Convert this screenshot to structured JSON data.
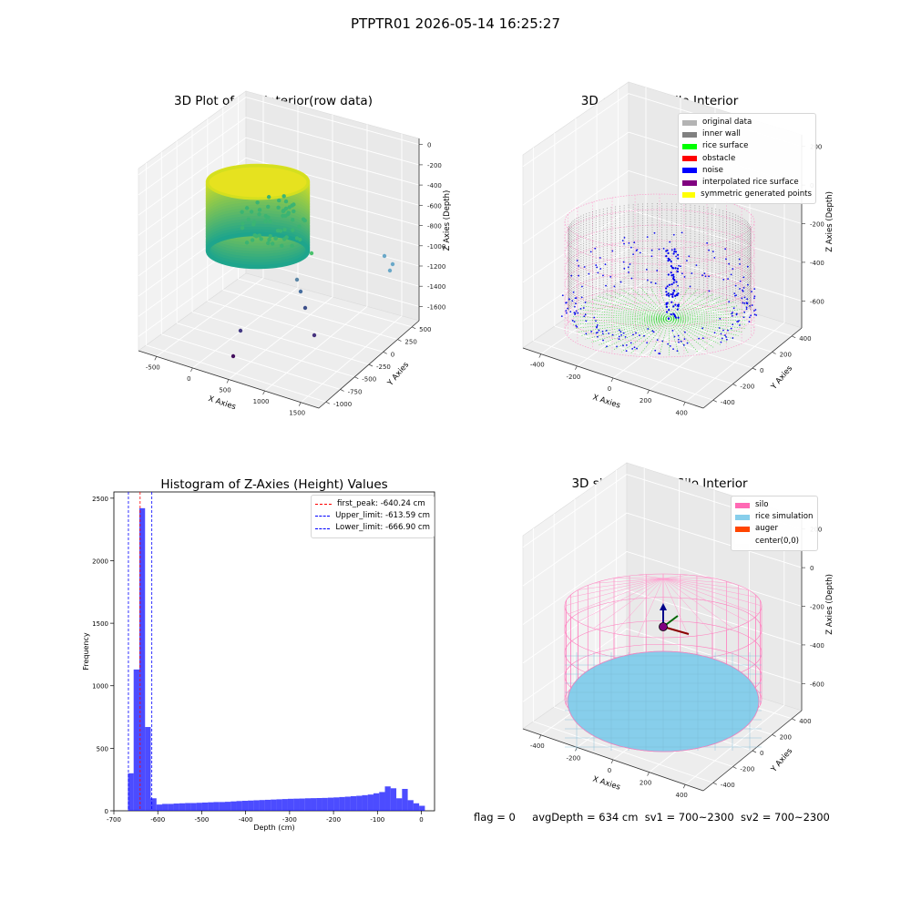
{
  "suptitle": "PTPTR01 2026-05-14 16:25:27",
  "panels": {
    "raw": {
      "title": "3D Plot of Silo Interior(row data)",
      "xlabel": "X Axies",
      "ylabel": "Y Axies",
      "zlabel": "Z Axies (Depth)",
      "xticks": [
        "-500",
        "0",
        "500",
        "1000",
        "1500"
      ],
      "yticks": [
        "500",
        "250",
        "0",
        "-250",
        "-500",
        "-750",
        "-1000"
      ],
      "zticks": [
        "0",
        "-200",
        "-400",
        "-600",
        "-800",
        "-1000",
        "-1200",
        "-1400",
        "-1600"
      ]
    },
    "classify": {
      "title": "3D classify of Silo Interior",
      "xlabel": "X Axies",
      "ylabel": "Y Axies",
      "zlabel": "Z Axies (Depth)",
      "xticks": [
        "-400",
        "-200",
        "0",
        "200",
        "400"
      ],
      "yticks": [
        "400",
        "200",
        "0",
        "-200",
        "-400"
      ],
      "zticks": [
        "200",
        "0",
        "-200",
        "-400",
        "-600"
      ],
      "legend": [
        {
          "label": "original data",
          "color": "#b3b3b3"
        },
        {
          "label": "inner wall",
          "color": "#808080"
        },
        {
          "label": "rice surface",
          "color": "#00ff00"
        },
        {
          "label": "obstacle",
          "color": "#ff0000"
        },
        {
          "label": "noise",
          "color": "#0000ff"
        },
        {
          "label": "interpolated rice surface",
          "color": "#800080"
        },
        {
          "label": "symmetric generated points",
          "color": "#ffff00"
        }
      ]
    },
    "simulation": {
      "title": "3D simulation of Silo Interior",
      "xlabel": "X Axies",
      "ylabel": "Y Axies",
      "zlabel": "Z Axies (Depth)",
      "xticks": [
        "-400",
        "-200",
        "0",
        "200",
        "400"
      ],
      "yticks": [
        "400",
        "200",
        "0",
        "-200",
        "-400"
      ],
      "zticks": [
        "200",
        "0",
        "-200",
        "-400",
        "-600"
      ],
      "legend": [
        {
          "label": "silo",
          "color": "#ff69b4"
        },
        {
          "label": "rice simulation",
          "color": "#87ceeb"
        },
        {
          "label": "auger",
          "color": "#ff4500"
        },
        {
          "label": "center(0,0)",
          "color": "#ffffff"
        }
      ]
    }
  },
  "chart_data": {
    "type": "bar",
    "title": "Histogram of Z-Axies (Height) Values",
    "xlabel": "Depth (cm)",
    "ylabel": "Frequency",
    "xlim": [
      -700,
      30
    ],
    "ylim": [
      0,
      2550
    ],
    "xticks": [
      -700,
      -600,
      -500,
      -400,
      -300,
      -200,
      -100,
      0
    ],
    "yticks": [
      0,
      500,
      1000,
      1500,
      2000,
      2500
    ],
    "bar_color": "#0000ff",
    "bin_width": 13,
    "bin_starts": [
      -668,
      -655,
      -642,
      -629,
      -616,
      -603,
      -590,
      -577,
      -564,
      -551,
      -538,
      -525,
      -512,
      -499,
      -486,
      -473,
      -460,
      -447,
      -434,
      -421,
      -408,
      -395,
      -382,
      -369,
      -356,
      -343,
      -330,
      -317,
      -304,
      -291,
      -278,
      -265,
      -252,
      -239,
      -226,
      -213,
      -200,
      -187,
      -174,
      -161,
      -148,
      -135,
      -122,
      -109,
      -96,
      -83,
      -70,
      -57,
      -44,
      -31,
      -18,
      -5
    ],
    "values": [
      300,
      1130,
      2420,
      670,
      100,
      50,
      55,
      55,
      58,
      60,
      62,
      62,
      64,
      66,
      68,
      70,
      70,
      72,
      75,
      78,
      80,
      82,
      84,
      86,
      88,
      90,
      92,
      94,
      96,
      97,
      98,
      100,
      101,
      102,
      103,
      105,
      107,
      110,
      113,
      117,
      120,
      125,
      130,
      140,
      150,
      195,
      180,
      100,
      175,
      85,
      60,
      40
    ],
    "vlines": [
      {
        "label": "first_peak: -640.24 cm",
        "x": -640.24,
        "color": "#ff0000"
      },
      {
        "label": "Upper_limit: -613.59 cm",
        "x": -613.59,
        "color": "#0000ff"
      },
      {
        "label": "Lower_limit: -666.90 cm",
        "x": -666.9,
        "color": "#0000ff"
      }
    ]
  },
  "status": {
    "flag": "flag = 0",
    "avg_depth": "avgDepth = 634 cm",
    "sv1": "sv1 = 700~2300",
    "sv2": "sv2 = 700~2300"
  }
}
